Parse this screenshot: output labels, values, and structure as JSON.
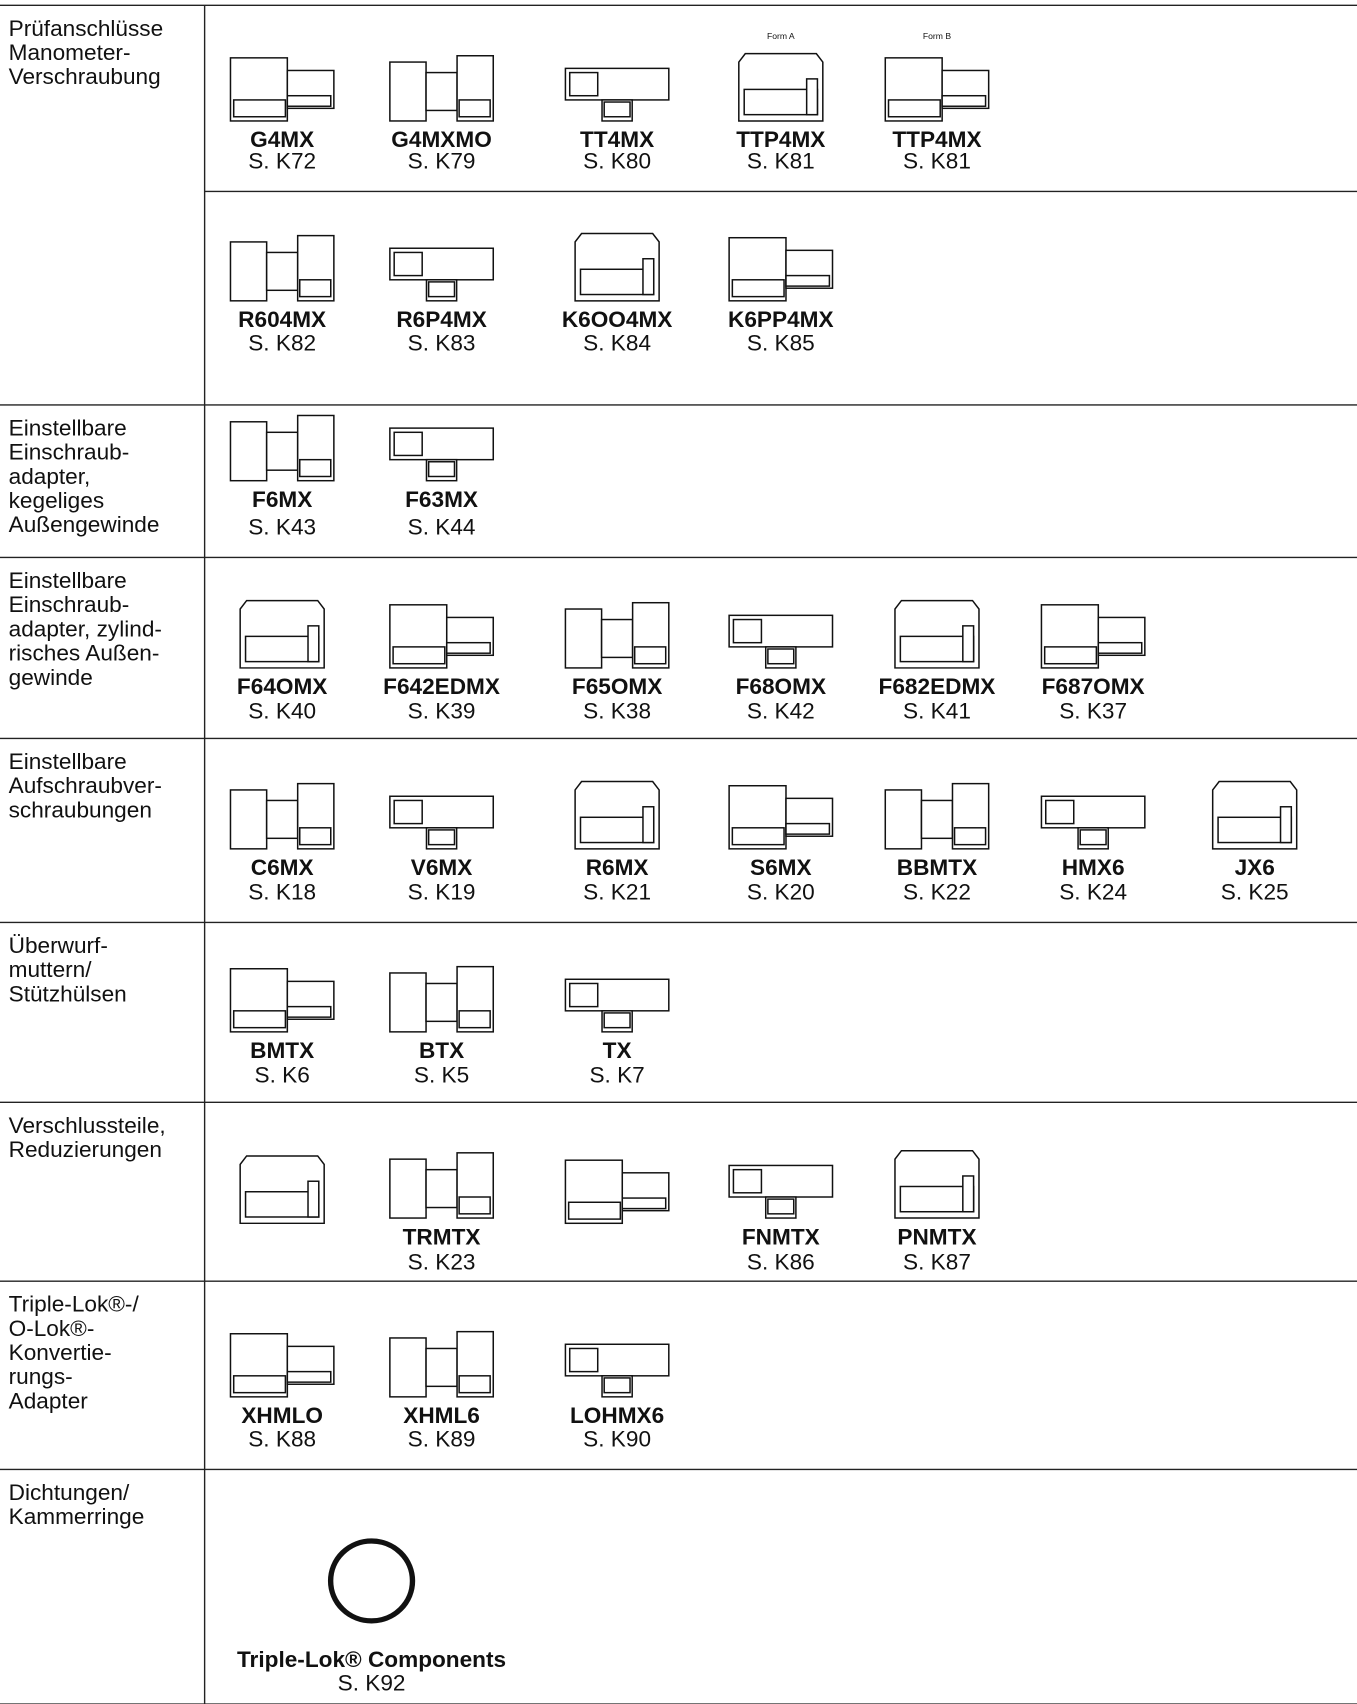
{
  "sections": [
    {
      "title": [
        "Prüfanschlüsse",
        "Manometer-",
        "Verschraubung"
      ],
      "rows": [
        [
          {
            "code": "G4MX",
            "page": "S. K72"
          },
          {
            "code": "G4MXMO",
            "page": "S. K79"
          },
          {
            "code": "TT4MX",
            "page": "S. K80"
          },
          {
            "code": "TTP4MX",
            "page": "S. K81",
            "note": "Form A"
          },
          {
            "code": "TTP4MX",
            "page": "S. K81",
            "note": "Form B"
          }
        ],
        [
          {
            "code": "R604MX",
            "page": "S. K82"
          },
          {
            "code": "R6P4MX",
            "page": "S. K83"
          },
          {
            "code": "K6OO4MX",
            "page": "S. K84"
          },
          {
            "code": "K6PP4MX",
            "page": "S. K85"
          }
        ]
      ]
    },
    {
      "title": [
        "Einstellbare",
        "Einschraub-",
        "adapter,",
        "kegeliges",
        "Außengewinde"
      ],
      "rows": [
        [
          {
            "code": "F6MX",
            "page": "S. K43"
          },
          {
            "code": "F63MX",
            "page": "S. K44"
          }
        ]
      ]
    },
    {
      "title": [
        "Einstellbare",
        "Einschraub-",
        "adapter, zylind-",
        "risches Außen-",
        "gewinde"
      ],
      "rows": [
        [
          {
            "code": "F64OMX",
            "page": "S. K40"
          },
          {
            "code": "F642EDMX",
            "page": "S. K39"
          },
          {
            "code": "F65OMX",
            "page": "S. K38"
          },
          {
            "code": "F68OMX",
            "page": "S. K42"
          },
          {
            "code": "F682EDMX",
            "page": "S. K41"
          },
          {
            "code": "F687OMX",
            "page": "S. K37"
          }
        ]
      ]
    },
    {
      "title": [
        "Einstellbare",
        "Aufschraubver-",
        "schraubungen"
      ],
      "rows": [
        [
          {
            "code": "C6MX",
            "page": "S. K18"
          },
          {
            "code": "V6MX",
            "page": "S. K19"
          },
          {
            "code": "R6MX",
            "page": "S. K21"
          },
          {
            "code": "S6MX",
            "page": "S. K20"
          },
          {
            "code": "BBMTX",
            "page": "S. K22"
          },
          {
            "code": "HMX6",
            "page": "S. K24"
          },
          {
            "code": "JX6",
            "page": "S. K25"
          }
        ]
      ]
    },
    {
      "title": [
        "Überwurf-",
        "muttern/",
        "Stützhülsen"
      ],
      "rows": [
        [
          {
            "code": "BMTX",
            "page": "S. K6"
          },
          {
            "code": "BTX",
            "page": "S. K5"
          },
          {
            "code": "TX",
            "page": "S. K7"
          }
        ]
      ]
    },
    {
      "title": [
        "Verschlussteile,",
        "Reduzierungen"
      ],
      "rows": [
        [
          {
            "code": "TRMTX",
            "page": "S. K23"
          },
          {
            "code": "FNMTX",
            "page": "S. K86"
          },
          {
            "code": "PNMTX",
            "page": "S. K87"
          }
        ]
      ]
    },
    {
      "title": [
        "Triple-Lok®-/",
        "O-Lok®-",
        "Konvertie-",
        "rungs-",
        "Adapter"
      ],
      "rows": [
        [
          {
            "code": "XHMLO",
            "page": "S. K88"
          },
          {
            "code": "XHML6",
            "page": "S. K89"
          },
          {
            "code": "LOHMX6",
            "page": "S. K90"
          }
        ]
      ]
    },
    {
      "title": [
        "Dichtungen/",
        "Kammerringe"
      ],
      "rows": [
        [
          {
            "code": "Triple-Lok® Components",
            "page": "S. K92"
          }
        ]
      ]
    }
  ]
}
